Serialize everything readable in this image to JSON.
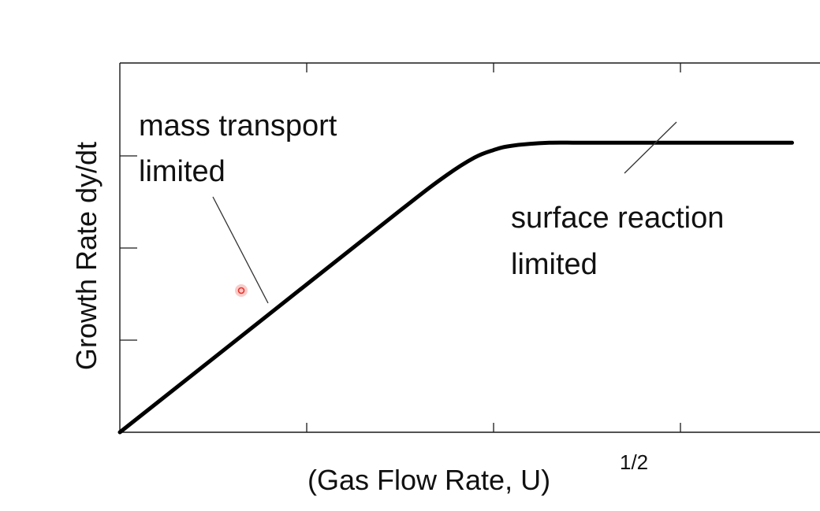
{
  "chart_data": {
    "type": "line",
    "xlabel": "(Gas Flow Rate,  U)",
    "xlabel_superscript": "1/2",
    "ylabel": "Growth Rate dy/dt",
    "series": [
      {
        "x": [
          0,
          0.75,
          1.5,
          1.75,
          1.9,
          2.0,
          2.1,
          2.3,
          2.5,
          3.0,
          3.6
        ],
        "y": [
          0,
          0.75,
          1.5,
          1.74,
          1.86,
          1.91,
          1.94,
          1.96,
          1.96,
          1.96,
          1.96
        ]
      }
    ],
    "xlim": [
      0,
      3.75
    ],
    "ylim": [
      0,
      2.5
    ],
    "x_ticks": 4,
    "y_ticks": 4,
    "grid": false,
    "annotations": [
      {
        "id": "mass-transport",
        "lines": [
          "mass transport",
          "limited"
        ],
        "points_to_x": 0.82
      },
      {
        "id": "surface-reaction",
        "lines": [
          "surface reaction",
          "limited"
        ],
        "points_to_x": 2.8
      }
    ],
    "colors": {
      "line": "#000000",
      "axis": "#1a1a1a",
      "marker": "#e8332b"
    }
  }
}
